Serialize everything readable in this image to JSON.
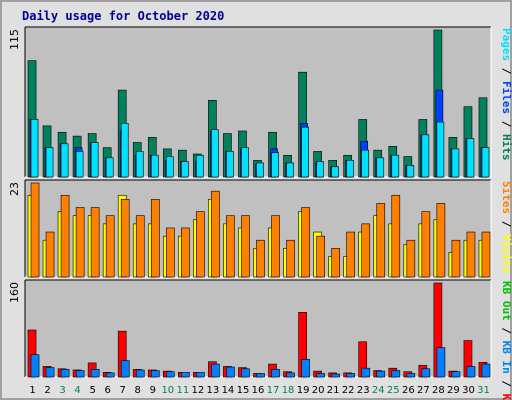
{
  "title": "Daily usage for October 2020",
  "colors": {
    "hits": "#00805c",
    "files": "#0040ff",
    "pages": "#00e0ff",
    "visits": "#ffff00",
    "sites": "#ff8000",
    "kbin": "#0080ff",
    "kbout": "#00c000",
    "kbf": "#ff0000",
    "weekday_label": "#000000",
    "weekend_label": "#00805c"
  },
  "chart_data": [
    {
      "type": "bar",
      "panel": "top",
      "ymax_label": "115",
      "ylim": [
        0,
        115
      ],
      "legend": [
        {
          "text": "Hits",
          "color": "#00805c"
        },
        {
          "text": "Files",
          "color": "#0040ff"
        },
        {
          "text": "Pages",
          "color": "#00e0ff"
        }
      ],
      "categories": [
        "1",
        "2",
        "3",
        "4",
        "5",
        "6",
        "7",
        "8",
        "9",
        "10",
        "11",
        "12",
        "13",
        "14",
        "15",
        "16",
        "17",
        "18",
        "19",
        "20",
        "21",
        "22",
        "23",
        "24",
        "25",
        "26",
        "27",
        "28",
        "29",
        "30",
        "31"
      ],
      "series": [
        {
          "name": "Hits",
          "values": [
            91,
            40,
            35,
            32,
            34,
            23,
            68,
            27,
            31,
            22,
            21,
            18,
            60,
            34,
            36,
            13,
            35,
            17,
            82,
            20,
            13,
            17,
            45,
            21,
            24,
            16,
            45,
            115,
            31,
            55,
            62
          ]
        },
        {
          "name": "Files",
          "values": [
            45,
            23,
            26,
            23,
            27,
            15,
            36,
            17,
            17,
            13,
            12,
            12,
            36,
            20,
            22,
            10,
            22,
            11,
            42,
            11,
            8,
            13,
            28,
            15,
            17,
            9,
            33,
            68,
            22,
            30,
            23
          ]
        },
        {
          "name": "Pages",
          "values": [
            45,
            23,
            26,
            20,
            27,
            15,
            42,
            20,
            17,
            16,
            12,
            17,
            37,
            20,
            23,
            11,
            19,
            11,
            39,
            12,
            8,
            13,
            21,
            15,
            17,
            9,
            33,
            43,
            22,
            30,
            23
          ]
        }
      ]
    },
    {
      "type": "bar",
      "panel": "middle",
      "ymax_label": "23",
      "ylim": [
        0,
        23
      ],
      "legend": [
        {
          "text": "Visits",
          "color": "#ffff00"
        },
        {
          "text": "Sites",
          "color": "#ff8000"
        }
      ],
      "categories": [
        "1",
        "2",
        "3",
        "4",
        "5",
        "6",
        "7",
        "8",
        "9",
        "10",
        "11",
        "12",
        "13",
        "14",
        "15",
        "16",
        "17",
        "18",
        "19",
        "20",
        "21",
        "22",
        "23",
        "24",
        "25",
        "26",
        "27",
        "28",
        "29",
        "30",
        "31"
      ],
      "series": [
        {
          "name": "Visits",
          "values": [
            20,
            9,
            16,
            15,
            15,
            13,
            20,
            13,
            13,
            10,
            10,
            14,
            19,
            13,
            12,
            7,
            12,
            7,
            16,
            11,
            5,
            5,
            11,
            15,
            13,
            8,
            13,
            14,
            6,
            9,
            9
          ]
        },
        {
          "name": "Sites",
          "values": [
            23,
            11,
            20,
            17,
            17,
            15,
            19,
            15,
            19,
            12,
            12,
            16,
            21,
            15,
            15,
            9,
            15,
            9,
            17,
            10,
            7,
            11,
            13,
            18,
            20,
            9,
            16,
            18,
            9,
            11,
            11
          ]
        }
      ]
    },
    {
      "type": "bar",
      "panel": "bottom",
      "ymax_label": "160",
      "ylim": [
        0,
        160
      ],
      "legend": [
        {
          "text": "KB F",
          "color": "#ff0000"
        },
        {
          "text": "KB In",
          "color": "#0080ff"
        },
        {
          "text": "KB Out",
          "color": "#00c000"
        }
      ],
      "categories": [
        "1",
        "2",
        "3",
        "4",
        "5",
        "6",
        "7",
        "8",
        "9",
        "10",
        "11",
        "12",
        "13",
        "14",
        "15",
        "16",
        "17",
        "18",
        "19",
        "20",
        "21",
        "22",
        "23",
        "24",
        "25",
        "26",
        "27",
        "28",
        "29",
        "30",
        "31"
      ],
      "series": [
        {
          "name": "KB F",
          "values": [
            80,
            18,
            14,
            12,
            24,
            8,
            78,
            13,
            12,
            10,
            8,
            8,
            26,
            18,
            16,
            6,
            22,
            9,
            110,
            10,
            7,
            7,
            60,
            11,
            15,
            9,
            20,
            160,
            10,
            62,
            25
          ]
        },
        {
          "name": "KB In",
          "values": [
            38,
            16,
            13,
            11,
            13,
            7,
            28,
            12,
            11,
            9,
            8,
            8,
            22,
            17,
            14,
            6,
            13,
            7,
            30,
            6,
            5,
            6,
            15,
            10,
            11,
            6,
            14,
            50,
            9,
            18,
            22
          ]
        }
      ]
    }
  ],
  "xaxis": {
    "days": [
      "1",
      "2",
      "3",
      "4",
      "5",
      "6",
      "7",
      "8",
      "9",
      "10",
      "11",
      "12",
      "13",
      "14",
      "15",
      "16",
      "17",
      "18",
      "19",
      "20",
      "21",
      "22",
      "23",
      "24",
      "25",
      "26",
      "27",
      "28",
      "29",
      "30",
      "31"
    ],
    "weekend_days": [
      "3",
      "4",
      "10",
      "11",
      "17",
      "18",
      "24",
      "25",
      "31"
    ]
  }
}
